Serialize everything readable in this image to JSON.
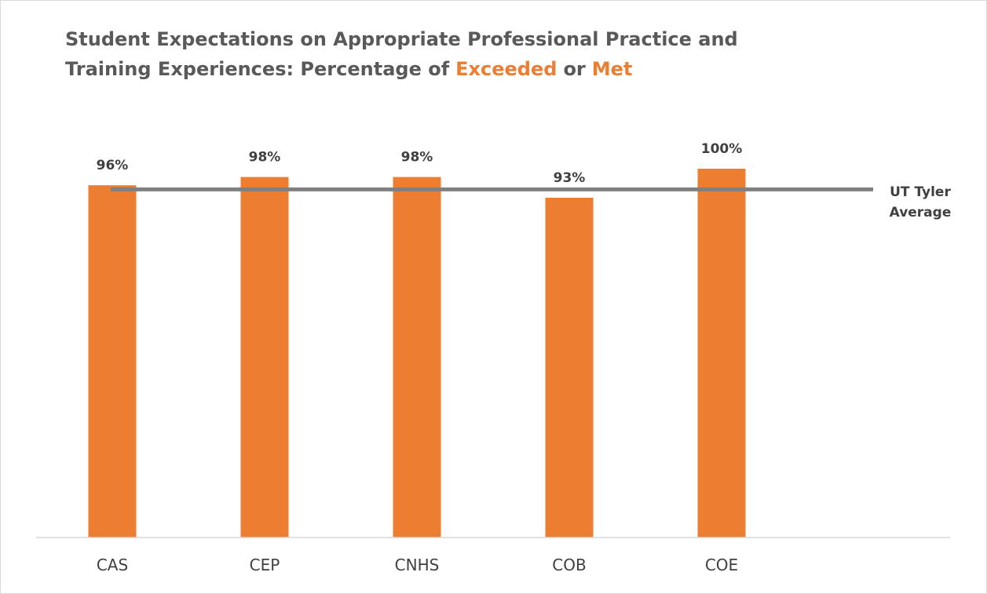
{
  "chart_data": {
    "type": "bar",
    "title_lines": [
      [
        "Student Expectations on Appropriate Professional Practice and"
      ],
      [
        "Training Experiences: Percentage of",
        "Exceeded",
        "or",
        "Met"
      ]
    ],
    "categories": [
      "CAS",
      "CEP",
      "CNHS",
      "COB",
      "COE"
    ],
    "values": [
      96,
      98,
      98,
      93,
      100
    ],
    "value_labels": [
      "96%",
      "98%",
      "98%",
      "93%",
      "100%"
    ],
    "color": "#ed7d31",
    "highlight_color": "#ed7d31",
    "average": 95,
    "average_label": "UT Tyler Average",
    "average_color": "#808080",
    "ylim": [
      11,
      100
    ]
  }
}
